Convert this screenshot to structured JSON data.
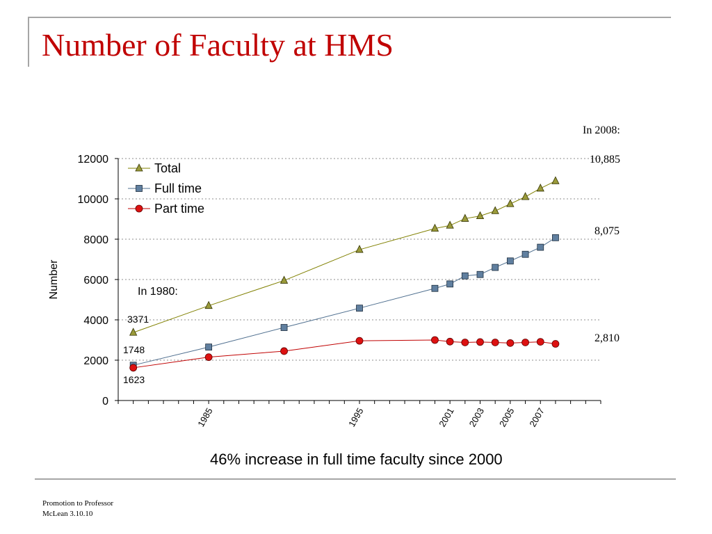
{
  "slide": {
    "title": "Number of Faculty at HMS",
    "caption": "46% increase in full time faculty since 2000",
    "side_labels": {
      "heading": "In 2008:",
      "total": "10,885",
      "full_time": "8,075",
      "part_time": "2,810"
    },
    "footer": {
      "line1": "Promotion to Professor",
      "line2": "McLean 3.10.10"
    },
    "colors": {
      "title": "#c00000",
      "frame": "#a6a6a6"
    }
  },
  "chart_data": {
    "type": "line",
    "title": "",
    "xlabel": "",
    "ylabel": "Number",
    "ylim": [
      0,
      12000
    ],
    "yticks": [
      0,
      2000,
      4000,
      6000,
      8000,
      10000,
      12000
    ],
    "xlim": [
      1979,
      2011
    ],
    "x_tick_labels": [
      "1985",
      "1995",
      "2001",
      "2003",
      "2005",
      "2007"
    ],
    "grid": "horizontal dotted",
    "legend_position": "top-left",
    "annotations": {
      "year_note": "In 1980:",
      "total_1980": "3371",
      "full_1980": "1748",
      "part_1980": "1623"
    },
    "series": [
      {
        "name": "Total",
        "color": "#808000",
        "marker_fill": "#9a9a3a",
        "marker": "triangle",
        "points": [
          [
            1980,
            3371
          ],
          [
            1985,
            4700
          ],
          [
            1990,
            5950
          ],
          [
            1995,
            7480
          ],
          [
            2000,
            8530
          ],
          [
            2001,
            8680
          ],
          [
            2002,
            9020
          ],
          [
            2003,
            9150
          ],
          [
            2004,
            9400
          ],
          [
            2005,
            9750
          ],
          [
            2006,
            10100
          ],
          [
            2007,
            10520
          ],
          [
            2008,
            10885
          ]
        ]
      },
      {
        "name": "Full time",
        "color": "#4f6f8f",
        "marker_fill": "#607f9f",
        "marker": "square",
        "points": [
          [
            1980,
            1748
          ],
          [
            1985,
            2650
          ],
          [
            1990,
            3620
          ],
          [
            1995,
            4580
          ],
          [
            2000,
            5560
          ],
          [
            2001,
            5780
          ],
          [
            2002,
            6180
          ],
          [
            2003,
            6250
          ],
          [
            2004,
            6600
          ],
          [
            2005,
            6920
          ],
          [
            2006,
            7250
          ],
          [
            2007,
            7600
          ],
          [
            2008,
            8075
          ]
        ]
      },
      {
        "name": "Part time",
        "color": "#c00000",
        "marker_fill": "#dd1111",
        "marker": "circle",
        "points": [
          [
            1980,
            1623
          ],
          [
            1985,
            2150
          ],
          [
            1990,
            2450
          ],
          [
            1995,
            2960
          ],
          [
            2000,
            3000
          ],
          [
            2001,
            2920
          ],
          [
            2002,
            2880
          ],
          [
            2003,
            2900
          ],
          [
            2004,
            2880
          ],
          [
            2005,
            2850
          ],
          [
            2006,
            2880
          ],
          [
            2007,
            2910
          ],
          [
            2008,
            2810
          ]
        ]
      }
    ]
  }
}
